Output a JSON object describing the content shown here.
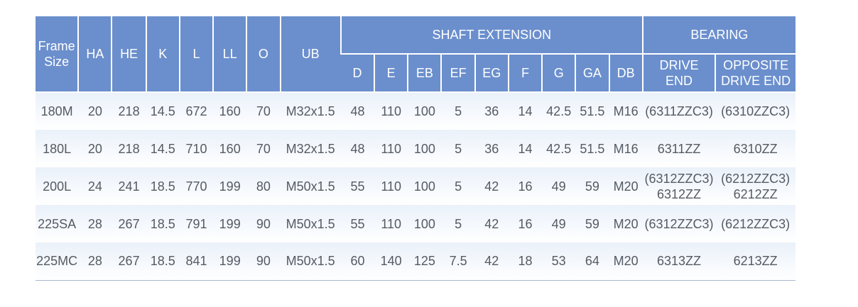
{
  "table": {
    "headers": {
      "frame_size": [
        "Frame",
        "Size"
      ],
      "ha": "HA",
      "he": "HE",
      "k": "K",
      "l": "L",
      "ll": "LL",
      "o": "O",
      "ub": "UB",
      "shaft_extension": "SHAFT EXTENSION",
      "bearing": "BEARING",
      "d": "D",
      "e": "E",
      "eb": "EB",
      "ef": "EF",
      "eg": "EG",
      "f": "F",
      "g": "G",
      "ga": "GA",
      "db": "DB",
      "drive_end": [
        "DRIVE",
        "END"
      ],
      "opposite_drive_end": [
        "OPPOSITE",
        "DRIVE END"
      ]
    },
    "rows": [
      {
        "frame": "180M",
        "ha": "20",
        "he": "218",
        "k": "14.5",
        "l": "672",
        "ll": "160",
        "o": "70",
        "ub": "M32x1.5",
        "d": "48",
        "e": "110",
        "eb": "100",
        "ef": "5",
        "eg": "36",
        "f": "14",
        "g": "42.5",
        "ga": "51.5",
        "db": "M16",
        "drive_end": [
          "(6311ZZC3)"
        ],
        "opposite_drive_end": [
          "(6310ZZC3)"
        ]
      },
      {
        "frame": "180L",
        "ha": "20",
        "he": "218",
        "k": "14.5",
        "l": "710",
        "ll": "160",
        "o": "70",
        "ub": "M32x1.5",
        "d": "48",
        "e": "110",
        "eb": "100",
        "ef": "5",
        "eg": "36",
        "f": "14",
        "g": "42.5",
        "ga": "51.5",
        "db": "M16",
        "drive_end": [
          "6311ZZ"
        ],
        "opposite_drive_end": [
          "6310ZZ"
        ]
      },
      {
        "frame": "200L",
        "ha": "24",
        "he": "241",
        "k": "18.5",
        "l": "770",
        "ll": "199",
        "o": "80",
        "ub": "M50x1.5",
        "d": "55",
        "e": "110",
        "eb": "100",
        "ef": "5",
        "eg": "42",
        "f": "16",
        "g": "49",
        "ga": "59",
        "db": "M20",
        "drive_end": [
          "(6312ZZC3)",
          "6312ZZ"
        ],
        "opposite_drive_end": [
          "(6212ZZC3)",
          "6212ZZ"
        ]
      },
      {
        "frame": "225SA",
        "ha": "28",
        "he": "267",
        "k": "18.5",
        "l": "791",
        "ll": "199",
        "o": "90",
        "ub": "M50x1.5",
        "d": "55",
        "e": "110",
        "eb": "100",
        "ef": "5",
        "eg": "42",
        "f": "16",
        "g": "49",
        "ga": "59",
        "db": "M20",
        "drive_end": [
          "(6312ZZC3)"
        ],
        "opposite_drive_end": [
          "(6212ZZC3)"
        ]
      },
      {
        "frame": "225MC",
        "ha": "28",
        "he": "267",
        "k": "18.5",
        "l": "841",
        "ll": "199",
        "o": "90",
        "ub": "M50x1.5",
        "d": "60",
        "e": "140",
        "eb": "125",
        "ef": "7.5",
        "eg": "42",
        "f": "18",
        "g": "53",
        "ga": "64",
        "db": "M20",
        "drive_end": [
          "6313ZZ"
        ],
        "opposite_drive_end": [
          "6213ZZ"
        ]
      }
    ]
  },
  "colors": {
    "header_bg": "#6b8fcd",
    "header_text": "#ffffff",
    "cell_text": "#555b63",
    "row_gradient_top": "#eaf1fa",
    "bottom_rule": "#a9b8cc"
  }
}
